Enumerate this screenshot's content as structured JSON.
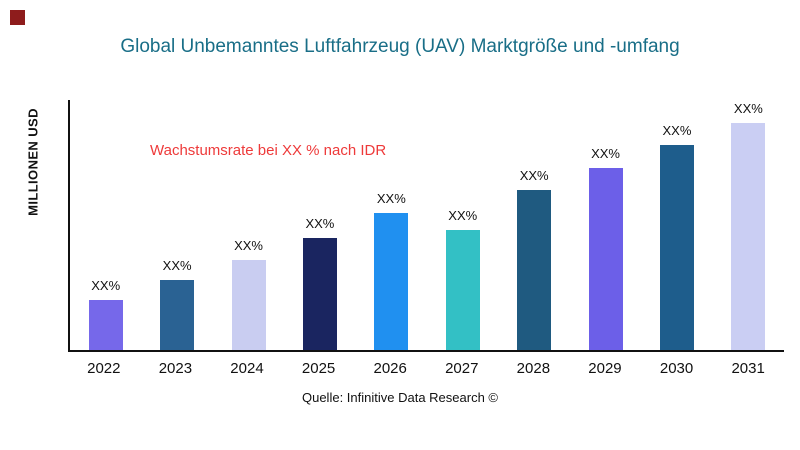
{
  "brand": {
    "color": "#8e1c1c"
  },
  "title": {
    "text": "Global Unbemanntes Luftfahrzeug (UAV) Marktgröße und -umfang",
    "color": "#196e87"
  },
  "ylabel": "MILLIONEN USD",
  "annotation": {
    "text": "Wachstumsrate bei XX % nach IDR",
    "color": "#ee3a3a"
  },
  "source": "Quelle: Infinitive Data Research ©",
  "chart_data": {
    "type": "bar",
    "title": "Global Unbemanntes Luftfahrzeug (UAV) Marktgröße und -umfang",
    "xlabel": "",
    "ylabel": "MILLIONEN USD",
    "categories": [
      "2022",
      "2023",
      "2024",
      "2025",
      "2026",
      "2027",
      "2028",
      "2029",
      "2030",
      "2031"
    ],
    "values": [
      20,
      28,
      36,
      45,
      55,
      48,
      64,
      73,
      82,
      91
    ],
    "bar_labels": [
      "XX%",
      "XX%",
      "XX%",
      "XX%",
      "XX%",
      "XX%",
      "XX%",
      "XX%",
      "XX%",
      "XX%"
    ],
    "colors": [
      "#7668ea",
      "#2a6293",
      "#c9cdf1",
      "#1a2560",
      "#2090f0",
      "#33c0c5",
      "#1f5a80",
      "#6c5fe8",
      "#1e5d8c",
      "#cacef3"
    ],
    "ylim": [
      0,
      100
    ],
    "grid": false,
    "legend": "none",
    "annotations": [
      "Wachstumsrate bei XX % nach IDR"
    ]
  }
}
